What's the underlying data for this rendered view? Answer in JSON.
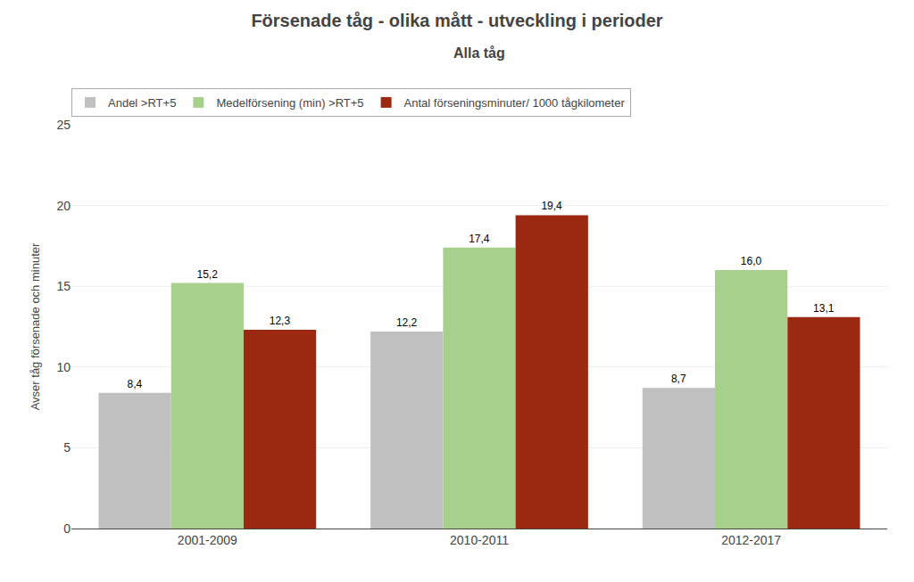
{
  "chart_data": {
    "type": "bar",
    "title": "Försenade tåg - olika mått - utveckling i perioder",
    "subtitle": "Alla tåg",
    "ylabel": "Avser tåg försenade och minuter",
    "categories": [
      "2001-2009",
      "2010-2011",
      "2012-2017"
    ],
    "series": [
      {
        "name": "Andel >RT+5",
        "color": "#c0c0c0",
        "values": [
          8.4,
          12.2,
          8.7
        ],
        "value_labels": [
          "8,4",
          "12,2",
          "8,7"
        ]
      },
      {
        "name": "Medelförsening (min) >RT+5",
        "color": "#a8d08d",
        "values": [
          15.2,
          17.4,
          16.0
        ],
        "value_labels": [
          "15,2",
          "17,4",
          "16,0"
        ]
      },
      {
        "name": "Antal förseningsminuter/ 1000 tågkilometer",
        "color": "#9b2912",
        "values": [
          12.3,
          19.4,
          13.1
        ],
        "value_labels": [
          "12,3",
          "19,4",
          "13,1"
        ]
      }
    ],
    "ylim": [
      0,
      25
    ],
    "yticks": [
      0,
      5,
      10,
      15,
      20,
      25
    ],
    "grid": true,
    "legend": "upper left",
    "data_labels": true
  }
}
